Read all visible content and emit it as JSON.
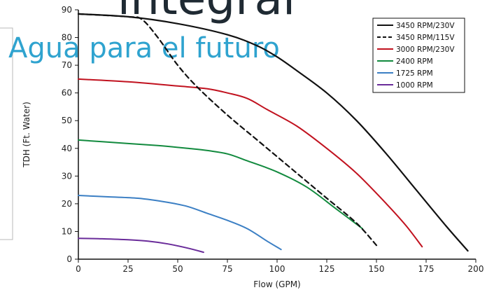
{
  "watermark": {
    "brand": "integral",
    "tagline": "Agua para el futuro"
  },
  "chart_data": {
    "type": "line",
    "xlabel": "Flow (GPM)",
    "ylabel": "TDH (Ft. Water)",
    "xlim": [
      0,
      200
    ],
    "ylim": [
      0,
      90
    ],
    "xticks": [
      0,
      25,
      50,
      75,
      100,
      125,
      150,
      175,
      200
    ],
    "yticks": [
      0,
      10,
      20,
      30,
      40,
      50,
      60,
      70,
      80,
      90
    ],
    "grid": false,
    "legend_position": "top-right",
    "series": [
      {
        "name": "3450 RPM/230V",
        "color": "#111111",
        "dash": "solid",
        "x": [
          0,
          25,
          50,
          75,
          90,
          100,
          110,
          125,
          140,
          155,
          170,
          185,
          196
        ],
        "y": [
          88.5,
          87.5,
          85,
          81,
          77,
          73,
          68,
          60,
          50,
          38,
          25,
          12,
          3
        ]
      },
      {
        "name": "3450 RPM/115V",
        "color": "#111111",
        "dash": "dashed",
        "x": [
          0,
          25,
          32,
          40,
          50,
          60,
          75,
          90,
          100,
          110,
          125,
          140,
          150
        ],
        "y": [
          88.5,
          87.5,
          86.5,
          80,
          70,
          62,
          52,
          43,
          37,
          31,
          22,
          13,
          5
        ]
      },
      {
        "name": "3000 RPM/230V",
        "color": "#c1121f",
        "dash": "solid",
        "x": [
          0,
          25,
          50,
          65,
          75,
          85,
          95,
          110,
          125,
          140,
          155,
          165,
          173
        ],
        "y": [
          65,
          64,
          62.5,
          61.5,
          60,
          58,
          54,
          48,
          40,
          31,
          20,
          12,
          4.5
        ]
      },
      {
        "name": "2400 RPM",
        "color": "#128a3e",
        "dash": "solid",
        "x": [
          0,
          20,
          40,
          55,
          65,
          75,
          85,
          100,
          115,
          130,
          143
        ],
        "y": [
          43,
          42,
          41,
          40,
          39.2,
          38,
          35.5,
          31.5,
          26,
          18,
          11
        ]
      },
      {
        "name": "1725 RPM",
        "color": "#3b7fc4",
        "dash": "solid",
        "x": [
          0,
          15,
          30,
          45,
          55,
          65,
          75,
          85,
          95,
          102
        ],
        "y": [
          23,
          22.5,
          22,
          20.5,
          19,
          16.5,
          14,
          11,
          6.5,
          3.5
        ]
      },
      {
        "name": "1000 RPM",
        "color": "#6a2c9a",
        "dash": "solid",
        "x": [
          0,
          10,
          25,
          35,
          45,
          55,
          63
        ],
        "y": [
          7.5,
          7.4,
          7,
          6.5,
          5.5,
          4,
          2.5
        ]
      }
    ]
  }
}
